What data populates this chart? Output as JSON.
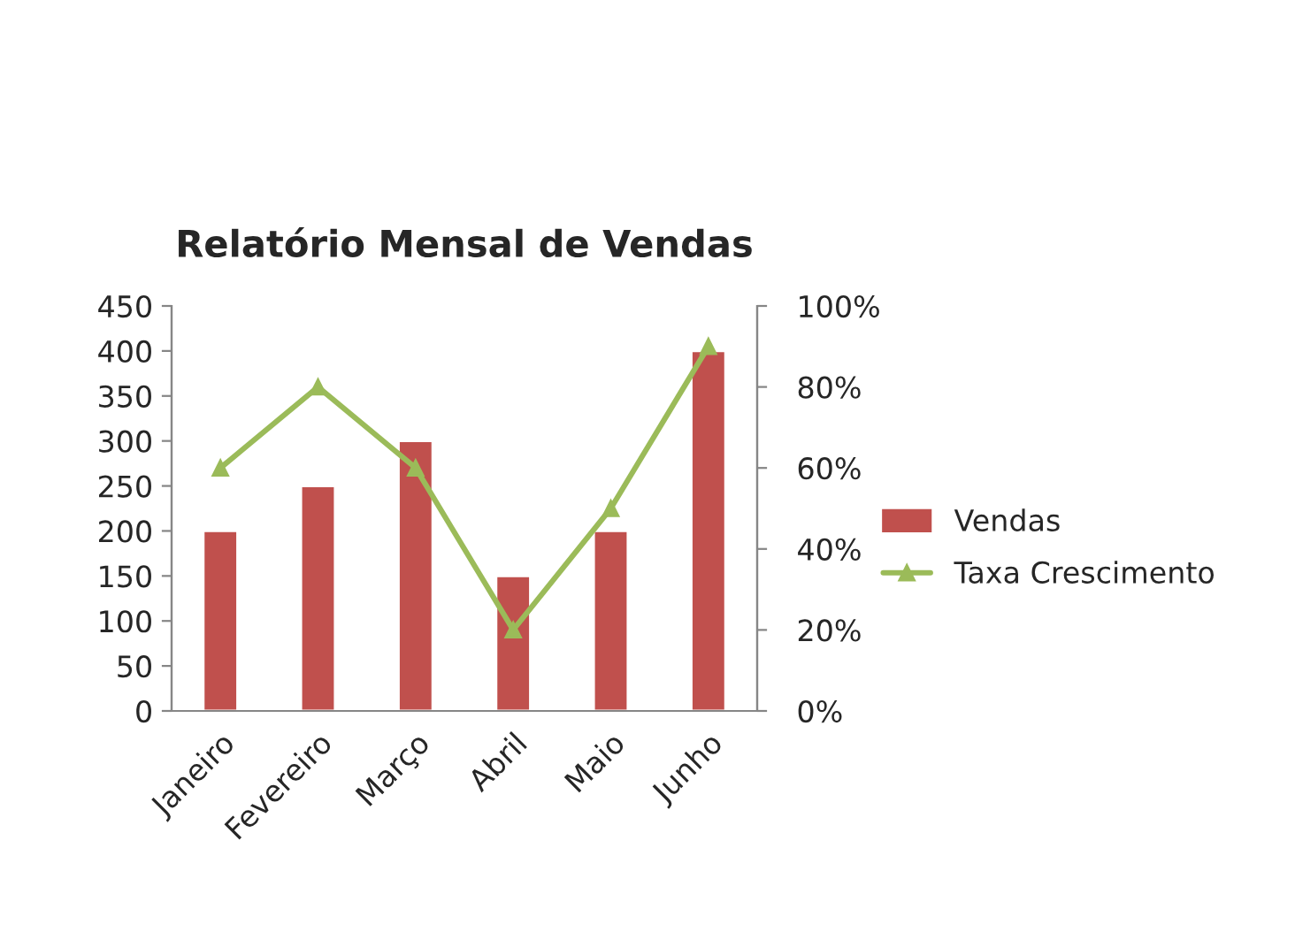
{
  "chart_data": {
    "type": "bar",
    "title": "Relatório Mensal de Vendas",
    "categories": [
      "Janeiro",
      "Fevereiro",
      "Março",
      "Abril",
      "Maio",
      "Junho"
    ],
    "series": [
      {
        "name": "Vendas",
        "color": "#c0504d",
        "values": [
          200,
          250,
          300,
          150,
          200,
          400
        ]
      },
      {
        "name": "Taxa Crescimento",
        "type": "line",
        "axis": "y2",
        "color": "#9bbb59",
        "marker": "triangle",
        "values": [
          60,
          80,
          60,
          20,
          50,
          90
        ]
      }
    ],
    "ylim": [
      0,
      450
    ],
    "yticks": [
      0,
      50,
      100,
      150,
      200,
      250,
      300,
      350,
      400,
      450
    ],
    "y2lim": [
      0,
      100
    ],
    "y2ticks": [
      {
        "value": 0,
        "label": "0%"
      },
      {
        "value": 20,
        "label": "20%"
      },
      {
        "value": 40,
        "label": "40%"
      },
      {
        "value": 60,
        "label": "60%"
      },
      {
        "value": 80,
        "label": "80%"
      },
      {
        "value": 100,
        "label": "100%"
      }
    ],
    "grid": false,
    "legend": "right"
  }
}
